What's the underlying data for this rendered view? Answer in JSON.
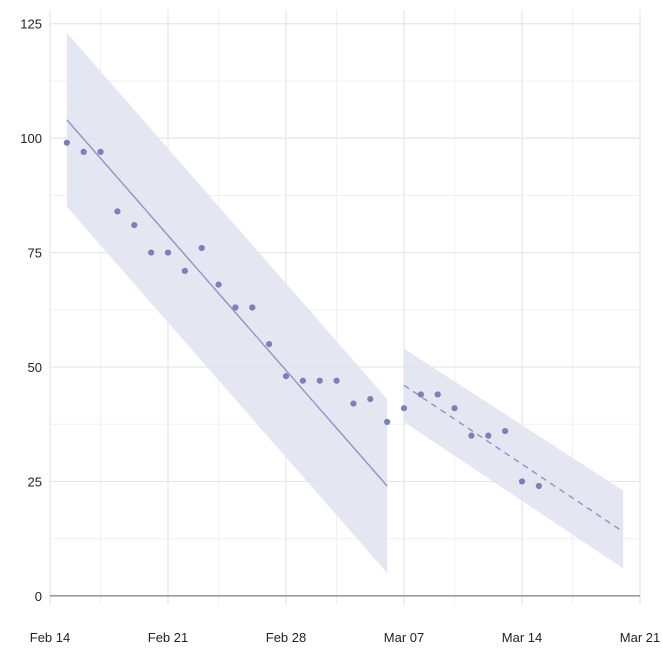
{
  "chart_data": {
    "type": "scatter",
    "title": "",
    "xlabel": "",
    "ylabel": "",
    "x_axis": {
      "type": "date",
      "range": [
        "2022-02-14",
        "2022-03-21"
      ],
      "ticks": [
        {
          "date": "2022-02-14",
          "label": "Feb 14"
        },
        {
          "date": "2022-02-21",
          "label": "Feb 21"
        },
        {
          "date": "2022-02-28",
          "label": "Feb 28"
        },
        {
          "date": "2022-03-07",
          "label": "Mar 07"
        },
        {
          "date": "2022-03-14",
          "label": "Mar 14"
        },
        {
          "date": "2022-03-21",
          "label": "Mar 21"
        }
      ]
    },
    "y_axis": {
      "range": [
        -2,
        128
      ],
      "ticks": [
        0,
        25,
        50,
        75,
        100,
        125
      ]
    },
    "grid": true,
    "legend": "none",
    "colors": {
      "points": "#7a80b8",
      "fit_line": "#8f94c4",
      "band": "#e1e3f1",
      "grid": "#e6e6e6",
      "zero_line": "#9a9a9a"
    },
    "series": [
      {
        "type": "scatter",
        "points": [
          {
            "x": "2022-02-15",
            "y": 99
          },
          {
            "x": "2022-02-16",
            "y": 97
          },
          {
            "x": "2022-02-17",
            "y": 97
          },
          {
            "x": "2022-02-18",
            "y": 84
          },
          {
            "x": "2022-02-19",
            "y": 81
          },
          {
            "x": "2022-02-20",
            "y": 75
          },
          {
            "x": "2022-02-21",
            "y": 75
          },
          {
            "x": "2022-02-22",
            "y": 71
          },
          {
            "x": "2022-02-23",
            "y": 76
          },
          {
            "x": "2022-02-24",
            "y": 68
          },
          {
            "x": "2022-02-25",
            "y": 63
          },
          {
            "x": "2022-02-26",
            "y": 63
          },
          {
            "x": "2022-02-27",
            "y": 55
          },
          {
            "x": "2022-02-28",
            "y": 48
          },
          {
            "x": "2022-03-01",
            "y": 47
          },
          {
            "x": "2022-03-02",
            "y": 47
          },
          {
            "x": "2022-03-03",
            "y": 47
          },
          {
            "x": "2022-03-04",
            "y": 42
          },
          {
            "x": "2022-03-05",
            "y": 43
          },
          {
            "x": "2022-03-06",
            "y": 38
          },
          {
            "x": "2022-03-07",
            "y": 41
          },
          {
            "x": "2022-03-08",
            "y": 44
          },
          {
            "x": "2022-03-09",
            "y": 44
          },
          {
            "x": "2022-03-10",
            "y": 41
          },
          {
            "x": "2022-03-11",
            "y": 35
          },
          {
            "x": "2022-03-12",
            "y": 35
          },
          {
            "x": "2022-03-13",
            "y": 36
          },
          {
            "x": "2022-03-14",
            "y": 25
          },
          {
            "x": "2022-03-15",
            "y": 24
          }
        ]
      },
      {
        "type": "line",
        "style": "solid",
        "points": [
          {
            "x": "2022-02-15",
            "y": 104
          },
          {
            "x": "2022-03-06",
            "y": 24
          }
        ]
      },
      {
        "type": "band",
        "points": [
          {
            "x": "2022-02-15",
            "low": 85,
            "high": 123
          },
          {
            "x": "2022-03-06",
            "low": 5,
            "high": 43
          }
        ]
      },
      {
        "type": "line",
        "style": "dashed",
        "points": [
          {
            "x": "2022-03-07",
            "y": 46
          },
          {
            "x": "2022-03-20",
            "y": 14
          }
        ]
      },
      {
        "type": "band",
        "points": [
          {
            "x": "2022-03-07",
            "low": 38,
            "high": 54
          },
          {
            "x": "2022-03-20",
            "low": 6,
            "high": 23
          }
        ]
      }
    ]
  }
}
